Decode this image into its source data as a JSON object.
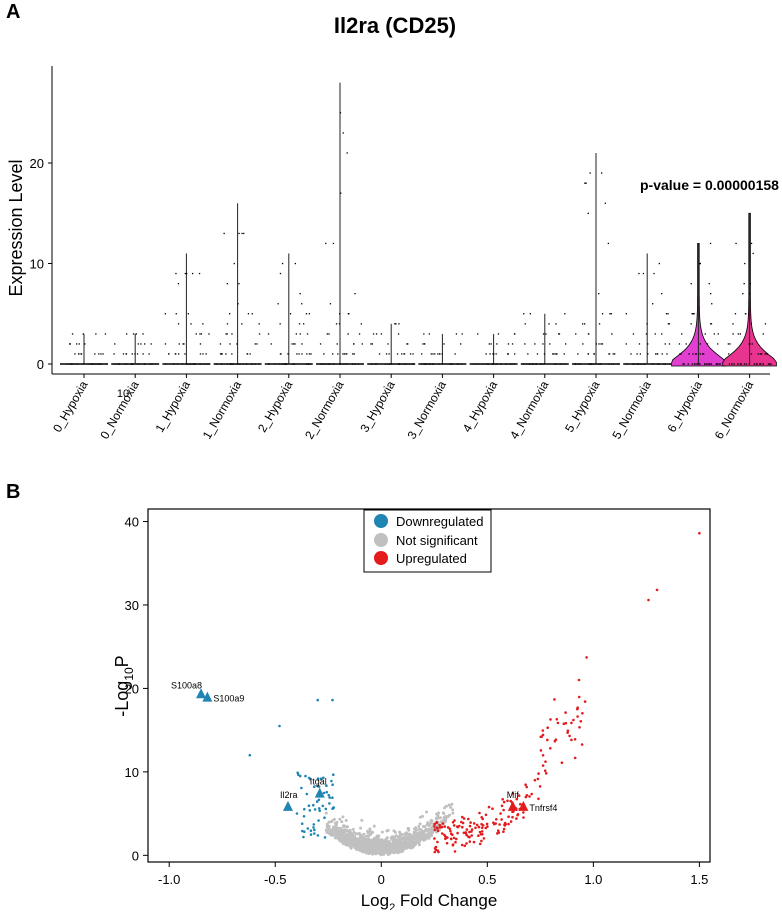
{
  "panel_a_label": "A",
  "panel_b_label": "B",
  "colors": {
    "violin_pink": "#e23fd0",
    "violin_pink2": "#e8348f",
    "down": "#1f86b3",
    "ns": "#c0c0c0",
    "up": "#e41a1c",
    "axis": "#000000"
  },
  "chart_data": [
    {
      "type": "violin",
      "title": "Il2ra (CD25)",
      "xlabel": "",
      "ylabel": "Expression Level",
      "ylim": [
        -0.3,
        29.5
      ],
      "yticks": [
        0,
        10,
        20
      ],
      "categories": [
        "0_Hypoxia",
        "0_Normoxia",
        "1_Hypoxia",
        "1_Normoxia",
        "2_Hypoxia",
        "2_Normoxia",
        "3_Hypoxia",
        "3_Normoxia",
        "4_Hypoxia",
        "4_Normoxia",
        "5_Hypoxia",
        "5_Normoxia",
        "6_Hypoxia",
        "6_Normoxia"
      ],
      "max_values": [
        3,
        3,
        11,
        16,
        11,
        28,
        4,
        3,
        3,
        5,
        21,
        11,
        12,
        15
      ],
      "violin_filled": [
        false,
        false,
        false,
        false,
        false,
        false,
        false,
        false,
        false,
        false,
        false,
        false,
        true,
        true
      ],
      "annotation": "p-value = 0.00000158",
      "stray_label": "10"
    },
    {
      "type": "scatter",
      "title": "",
      "xlabel": "Log",
      "xlabel_sub": "2",
      "xlabel_tail": " Fold Change",
      "ylabel": "-Log",
      "ylabel_sub": "10",
      "ylabel_tail": "P",
      "xlim": [
        -1.1,
        1.55
      ],
      "ylim": [
        -0.8,
        41.5
      ],
      "xticks": [
        -1.0,
        -0.5,
        0,
        0.5,
        1.0,
        1.5
      ],
      "xtick_labels": [
        "-1.0",
        "-0.5",
        "0",
        "0.5",
        "1.0",
        "1.5"
      ],
      "yticks": [
        0,
        10,
        20,
        30,
        40
      ],
      "legend": [
        "Downregulated",
        "Not significant",
        "Upregulated"
      ],
      "legend_position": "top-center",
      "labeled_genes": [
        {
          "name": "S100a8",
          "x": -0.85,
          "y": 19.3,
          "group": "down"
        },
        {
          "name": "S100a9",
          "x": -0.82,
          "y": 18.9,
          "group": "down"
        },
        {
          "name": "Itgal",
          "x": -0.29,
          "y": 7.4,
          "group": "down"
        },
        {
          "name": "Il2ra",
          "x": -0.44,
          "y": 5.8,
          "group": "down"
        },
        {
          "name": "Mif",
          "x": 0.62,
          "y": 5.8,
          "group": "up"
        },
        {
          "name": "Tnfrsf4",
          "x": 0.67,
          "y": 5.8,
          "group": "up"
        }
      ],
      "notable_points": [
        {
          "x": 1.5,
          "y": 38.6,
          "group": "up"
        },
        {
          "x": 1.3,
          "y": 31.8,
          "group": "up"
        },
        {
          "x": 1.26,
          "y": 30.6,
          "group": "up"
        },
        {
          "x": -0.3,
          "y": 18.6,
          "group": "down"
        },
        {
          "x": -0.23,
          "y": 18.6,
          "group": "down"
        },
        {
          "x": -0.48,
          "y": 15.5,
          "group": "down"
        },
        {
          "x": -0.62,
          "y": 12.0,
          "group": "down"
        }
      ]
    }
  ]
}
